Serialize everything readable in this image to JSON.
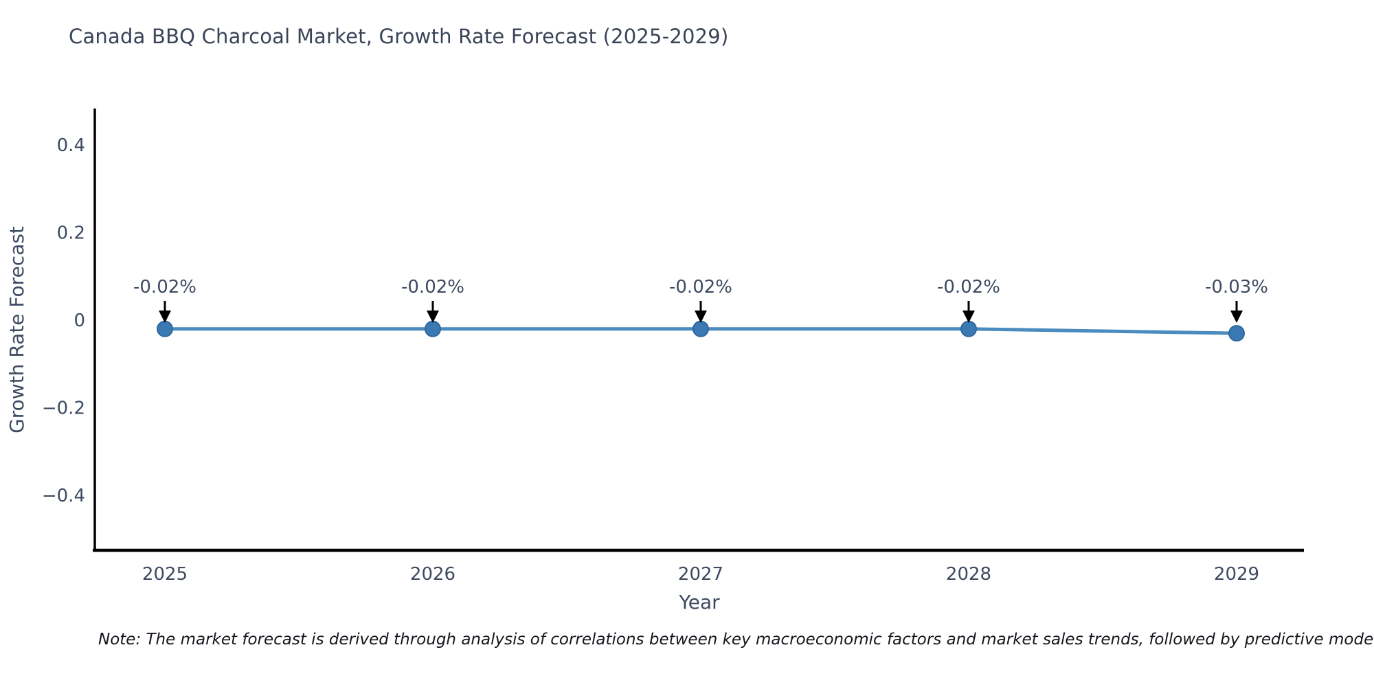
{
  "note": "Note: The market forecast is derived through analysis of correlations between key macroeconomic factors and market sales trends, followed by predictive modeling to project future sales.",
  "chart_data": {
    "type": "line",
    "title": "Canada BBQ Charcoal Market, Growth Rate Forecast (2025-2029)",
    "xlabel": "Year",
    "ylabel": "Growth Rate Forecast",
    "x": [
      2025,
      2026,
      2027,
      2028,
      2029
    ],
    "xticks": [
      "2025",
      "2026",
      "2027",
      "2028",
      "2029"
    ],
    "series": [
      {
        "name": "Growth Rate Forecast",
        "values": [
          -0.02,
          -0.02,
          -0.02,
          -0.02,
          -0.03
        ]
      }
    ],
    "annotations": [
      "-0.02%",
      "-0.02%",
      "-0.02%",
      "-0.02%",
      "-0.03%"
    ],
    "yticks": [
      {
        "value": 0.4,
        "label": "0.4"
      },
      {
        "value": 0.2,
        "label": "0.2"
      },
      {
        "value": 0.0,
        "label": "0"
      },
      {
        "value": -0.2,
        "label": "−0.2"
      },
      {
        "value": -0.4,
        "label": "−0.4"
      }
    ],
    "ylim": [
      -0.52,
      0.48
    ],
    "grid": false,
    "legend": "none",
    "colors": {
      "line": "#4a8bc0",
      "marker": "#3b79b2",
      "marker_edge": "#30669e",
      "arrow": "#000000",
      "axis_spine": "#000000",
      "chart_text": "#3e4a61",
      "title_text": "#3a4458",
      "note_text": "#14171d"
    }
  }
}
